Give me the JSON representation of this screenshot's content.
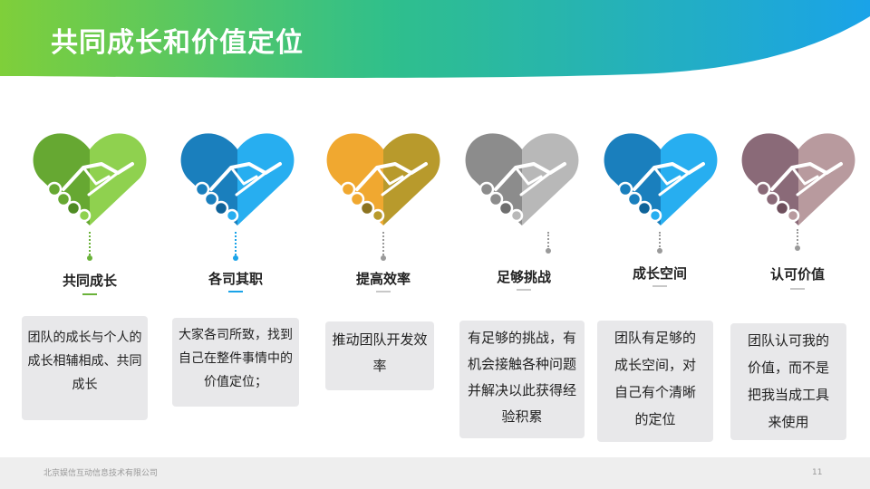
{
  "slide": {
    "title": "共同成长和价值定位",
    "company": "北京娱信互动信息技术有限公司",
    "page_number": "11"
  },
  "items": [
    {
      "label": "共同成长",
      "desc": "团队的成长与个人的成长相辅相成、共同成长",
      "colors": {
        "left": "#66a832",
        "right": "#8fd14f",
        "cuff": "#4e8b23",
        "dot": "#6ab23a"
      }
    },
    {
      "label": "各司其职",
      "desc": "大家各司所致，找到自己在整件事情中的价值定位；",
      "colors": {
        "left": "#1a7fbd",
        "right": "#27aef0",
        "cuff": "#0f6399",
        "dot": "#1aa3e8"
      }
    },
    {
      "label": "提高效率",
      "desc": "推动团队开发效率",
      "colors": {
        "left": "#f0a830",
        "right": "#b89a2c",
        "cuff": "#8c7320",
        "dot": "#c9a83a"
      }
    },
    {
      "label": "足够挑战",
      "desc": "有足够的挑战，有机会接触各种问题并解决以此获得经验积累",
      "colors": {
        "left": "#8c8c8c",
        "right": "#b8b8b8",
        "cuff": "#6e6e6e",
        "dot": "#9a9a9a"
      }
    },
    {
      "label": "成长空间",
      "desc": "团队有足够的成长空间，对自己有个清晰的定位",
      "colors": {
        "left": "#1a7fbd",
        "right": "#27aef0",
        "cuff": "#0f6399",
        "dot": "#9a9a9a"
      }
    },
    {
      "label": "认可价值",
      "desc": "团队认可我的价值，而不是把我当成工具来使用",
      "colors": {
        "left": "#8a6a78",
        "right": "#b89a9e",
        "cuff": "#6e4f5c",
        "dot": "#9a9a9a"
      }
    }
  ]
}
